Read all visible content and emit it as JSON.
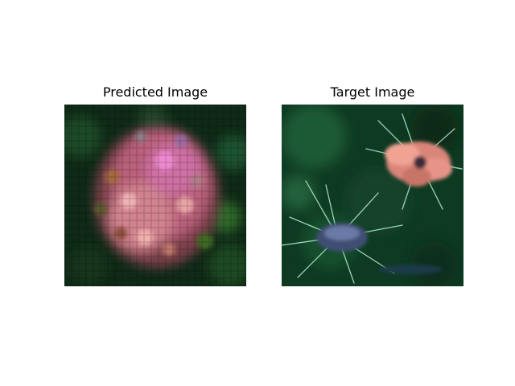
{
  "panels": [
    {
      "title": "Predicted Image"
    },
    {
      "title": "Target Image"
    }
  ]
}
